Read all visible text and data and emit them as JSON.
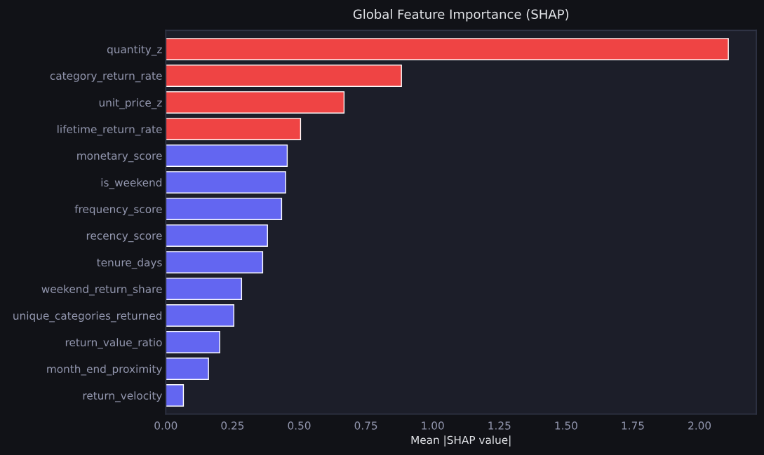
{
  "chart_data": {
    "type": "bar",
    "orientation": "horizontal",
    "title": "Global Feature Importance (SHAP)",
    "xlabel": "Mean |SHAP value|",
    "categories": [
      "quantity_z",
      "category_return_rate",
      "unit_price_z",
      "lifetime_return_rate",
      "monetary_score",
      "is_weekend",
      "frequency_score",
      "recency_score",
      "tenure_days",
      "weekend_return_share",
      "unique_categories_returned",
      "return_value_ratio",
      "month_end_proximity",
      "return_velocity"
    ],
    "values": [
      2.108,
      0.883,
      0.668,
      0.505,
      0.455,
      0.449,
      0.434,
      0.381,
      0.363,
      0.284,
      0.255,
      0.202,
      0.16,
      0.066
    ],
    "colors": [
      "#ef4444",
      "#ef4444",
      "#ef4444",
      "#ef4444",
      "#6366f1",
      "#6366f1",
      "#6366f1",
      "#6366f1",
      "#6366f1",
      "#6366f1",
      "#6366f1",
      "#6366f1",
      "#6366f1",
      "#6366f1"
    ],
    "xlim": [
      0,
      2.213
    ],
    "xticks": [
      {
        "value": 0,
        "label": "0.00"
      },
      {
        "value": 0.25,
        "label": "0.25"
      },
      {
        "value": 0.5,
        "label": "0.50"
      },
      {
        "value": 0.75,
        "label": "0.75"
      },
      {
        "value": 1.0,
        "label": "1.00"
      },
      {
        "value": 1.25,
        "label": "1.25"
      },
      {
        "value": 1.5,
        "label": "1.50"
      },
      {
        "value": 1.75,
        "label": "1.75"
      },
      {
        "value": 2.0,
        "label": "2.00"
      }
    ],
    "grid": false,
    "legend": false
  }
}
